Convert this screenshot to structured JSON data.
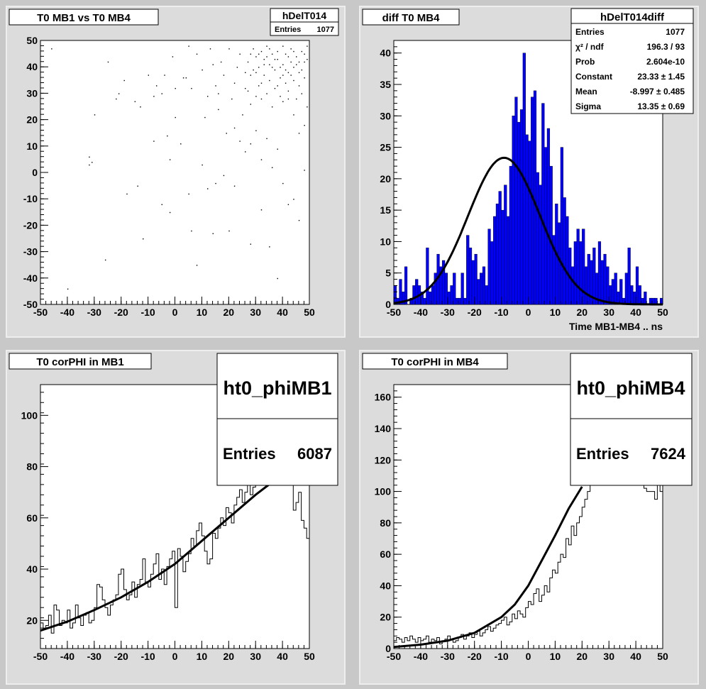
{
  "chart_data": [
    {
      "type": "scatter",
      "title": "T0 MB1 vs T0 MB4",
      "stats": {
        "name": "hDelT014",
        "rows": [
          {
            "label": "Entries",
            "value": "1077"
          }
        ]
      },
      "xlim": [
        -50,
        50
      ],
      "ylim": [
        -50,
        50
      ],
      "xticks": [
        "-50",
        "-40",
        "-30",
        "-20",
        "-10",
        "0",
        "10",
        "20",
        "30",
        "40",
        "50"
      ],
      "yticks": [
        "-50",
        "-40",
        "-30",
        "-20",
        "-10",
        "0",
        "10",
        "20",
        "30",
        "40",
        "50"
      ],
      "xlabel": "",
      "ylabel": "",
      "points": [
        [
          -46,
          47
        ],
        [
          -30,
          22
        ],
        [
          -32,
          6
        ],
        [
          -32,
          3
        ],
        [
          -31,
          4
        ],
        [
          -25,
          42
        ],
        [
          -22,
          28
        ],
        [
          -21,
          30
        ],
        [
          -19,
          35
        ],
        [
          -15,
          27
        ],
        [
          -13,
          25
        ],
        [
          -10,
          37
        ],
        [
          -8,
          29
        ],
        [
          -7,
          33
        ],
        [
          -5,
          30
        ],
        [
          -3,
          14
        ],
        [
          -2,
          5
        ],
        [
          -1,
          44
        ],
        [
          0,
          21
        ],
        [
          2,
          11
        ],
        [
          3,
          36
        ],
        [
          5,
          48
        ],
        [
          6,
          32
        ],
        [
          8,
          45
        ],
        [
          10,
          39
        ],
        [
          11,
          21
        ],
        [
          12,
          29
        ],
        [
          13,
          47
        ],
        [
          14,
          41
        ],
        [
          15,
          33
        ],
        [
          16,
          24
        ],
        [
          17,
          42
        ],
        [
          18,
          37
        ],
        [
          19,
          15
        ],
        [
          20,
          47
        ],
        [
          21,
          28
        ],
        [
          22,
          34
        ],
        [
          23,
          40
        ],
        [
          24,
          45
        ],
        [
          25,
          22
        ],
        [
          26,
          32
        ],
        [
          27,
          42
        ],
        [
          28,
          37
        ],
        [
          28,
          26
        ],
        [
          29,
          47
        ],
        [
          30,
          44
        ],
        [
          31,
          33
        ],
        [
          31,
          40
        ],
        [
          32,
          46
        ],
        [
          32,
          28
        ],
        [
          33,
          37
        ],
        [
          33,
          43
        ],
        [
          34,
          30
        ],
        [
          34,
          48
        ],
        [
          35,
          41
        ],
        [
          35,
          35
        ],
        [
          36,
          45
        ],
        [
          36,
          25
        ],
        [
          37,
          39
        ],
        [
          37,
          32
        ],
        [
          38,
          46
        ],
        [
          38,
          43
        ],
        [
          39,
          36
        ],
        [
          39,
          29
        ],
        [
          40,
          48
        ],
        [
          40,
          41
        ],
        [
          41,
          34
        ],
        [
          41,
          45
        ],
        [
          42,
          38
        ],
        [
          42,
          31
        ],
        [
          43,
          47
        ],
        [
          43,
          42
        ],
        [
          44,
          35
        ],
        [
          44,
          40
        ],
        [
          45,
          28
        ],
        [
          45,
          44
        ],
        [
          46,
          38
        ],
        [
          46,
          33
        ],
        [
          47,
          46
        ],
        [
          47,
          30
        ],
        [
          48,
          42
        ],
        [
          48,
          36
        ],
        [
          49,
          48
        ],
        [
          49,
          25
        ],
        [
          30,
          38
        ],
        [
          32,
          34
        ],
        [
          34,
          44
        ],
        [
          36,
          40
        ],
        [
          38,
          33
        ],
        [
          40,
          37
        ],
        [
          42,
          44
        ],
        [
          44,
          46
        ],
        [
          46,
          42
        ],
        [
          48,
          45
        ],
        [
          27,
          31
        ],
        [
          29,
          39
        ],
        [
          31,
          45
        ],
        [
          33,
          41
        ],
        [
          35,
          47
        ],
        [
          37,
          43
        ],
        [
          39,
          40
        ],
        [
          41,
          39
        ],
        [
          43,
          37
        ],
        [
          45,
          41
        ],
        [
          47,
          39
        ],
        [
          49,
          43
        ],
        [
          26,
          38
        ],
        [
          28,
          45
        ],
        [
          30,
          29
        ],
        [
          22,
          17
        ],
        [
          24,
          12
        ],
        [
          26,
          8
        ],
        [
          28,
          11
        ],
        [
          30,
          16
        ],
        [
          32,
          5
        ],
        [
          34,
          13
        ],
        [
          36,
          2
        ],
        [
          38,
          9
        ],
        [
          40,
          -4
        ],
        [
          42,
          -12
        ],
        [
          44,
          -10
        ],
        [
          46,
          -18
        ],
        [
          48,
          1
        ],
        [
          18,
          -1
        ],
        [
          15,
          -4
        ],
        [
          12,
          -6
        ],
        [
          5,
          -8
        ],
        [
          -5,
          -12
        ],
        [
          -2,
          -15
        ],
        [
          6,
          -22
        ],
        [
          14,
          -23
        ],
        [
          20,
          -22
        ],
        [
          28,
          -27
        ],
        [
          35,
          -28
        ],
        [
          38,
          -40
        ],
        [
          -12,
          -25
        ],
        [
          -18,
          -8
        ],
        [
          -26,
          -33
        ],
        [
          -40,
          -44
        ],
        [
          8,
          -35
        ],
        [
          22,
          -5
        ],
        [
          10,
          3
        ],
        [
          -8,
          12
        ],
        [
          -14,
          -5
        ],
        [
          32,
          -14
        ],
        [
          44,
          22
        ],
        [
          46,
          15
        ],
        [
          48,
          18
        ],
        [
          42,
          28
        ],
        [
          40,
          27
        ],
        [
          16,
          30
        ],
        [
          4,
          36
        ],
        [
          -4,
          37
        ],
        [
          0,
          32
        ]
      ]
    },
    {
      "type": "bar",
      "title": "diff T0 MB4",
      "xlabel": "Time MB1-MB4  ..  ns",
      "ylabel": "",
      "xlim": [
        -50,
        50
      ],
      "ylim": [
        0,
        42
      ],
      "xticks": [
        "-50",
        "-40",
        "-30",
        "-20",
        "-10",
        "0",
        "10",
        "20",
        "30",
        "40",
        "50"
      ],
      "yticks": [
        "0",
        "5",
        "10",
        "15",
        "20",
        "25",
        "30",
        "35",
        "40"
      ],
      "bin_start": -50,
      "bin_width": 1,
      "values": [
        3,
        1,
        4,
        2,
        6,
        0,
        1,
        3,
        4,
        3,
        2,
        1,
        9,
        2,
        3,
        5,
        8,
        6,
        7,
        5,
        2,
        3,
        5,
        1,
        1,
        5,
        1,
        11,
        9,
        7,
        8,
        4,
        5,
        6,
        3,
        12,
        10,
        14,
        16,
        18,
        15,
        19,
        14,
        22,
        30,
        33,
        29,
        31,
        40,
        27,
        26,
        33,
        34,
        21,
        19,
        32,
        25,
        28,
        22,
        11,
        16,
        13,
        25,
        17,
        14,
        9,
        6,
        10,
        12,
        10,
        12,
        6,
        8,
        7,
        9,
        5,
        10,
        7,
        8,
        6,
        3,
        4,
        5,
        2,
        4,
        1,
        5,
        9,
        3,
        2,
        6,
        3,
        1,
        2,
        0,
        1,
        1,
        1,
        0,
        1
      ],
      "fit": {
        "type": "gaus",
        "constant": 23.33,
        "mean": -8.997,
        "sigma": 13.35
      },
      "stats": {
        "name": "hDelT014diff",
        "rows": [
          {
            "label": "Entries",
            "value": "1077"
          },
          {
            "label": "χ² / ndf",
            "value": "196.3 / 93"
          },
          {
            "label": "Prob",
            "value": "2.604e-10"
          },
          {
            "label": "Constant",
            "value": "23.33 ± 1.45"
          },
          {
            "label": "Mean",
            "value": "-8.997 ± 0.485"
          },
          {
            "label": "Sigma",
            "value": "13.35 ± 0.69"
          }
        ]
      },
      "colors": {
        "fill": "#0000ff"
      }
    },
    {
      "type": "line",
      "title": "T0 corPHI in MB1",
      "xlabel": "",
      "ylabel": "",
      "xlim": [
        -50,
        50
      ],
      "ylim": [
        9,
        112
      ],
      "xticks": [
        "-50",
        "-40",
        "-30",
        "-20",
        "-10",
        "0",
        "10",
        "20",
        "30",
        "40",
        "50"
      ],
      "yticks": [
        "20",
        "40",
        "60",
        "80",
        "100"
      ],
      "bin_start": -50,
      "bin_width": 1,
      "values": [
        19,
        17,
        18,
        22,
        15,
        26,
        24,
        18,
        20,
        19,
        24,
        17,
        19,
        26,
        21,
        18,
        22,
        23,
        19,
        20,
        25,
        34,
        33,
        28,
        25,
        22,
        26,
        28,
        30,
        38,
        40,
        32,
        28,
        30,
        35,
        29,
        34,
        36,
        44,
        35,
        33,
        38,
        42,
        46,
        36,
        40,
        34,
        41,
        44,
        47,
        25,
        48,
        45,
        39,
        43,
        46,
        52,
        49,
        55,
        58,
        53,
        47,
        42,
        44,
        54,
        52,
        56,
        60,
        57,
        64,
        62,
        58,
        65,
        68,
        71,
        66,
        70,
        73,
        69,
        72,
        75,
        78,
        76,
        80,
        74,
        79,
        82,
        77,
        84,
        80,
        83,
        86,
        81,
        85,
        63,
        66,
        70,
        59,
        56,
        52
      ],
      "fit_points": [
        [
          -50,
          16
        ],
        [
          -40,
          19.5
        ],
        [
          -30,
          24
        ],
        [
          -20,
          29
        ],
        [
          -10,
          35
        ],
        [
          0,
          42
        ],
        [
          10,
          51
        ],
        [
          20,
          60
        ],
        [
          30,
          69
        ],
        [
          40,
          77
        ],
        [
          42,
          80
        ]
      ],
      "stats": {
        "name": "ht0_phiMB1",
        "rows": [
          {
            "label": "Entries",
            "value": "6087"
          }
        ]
      }
    },
    {
      "type": "line",
      "title": "T0 corPHI in MB4",
      "xlabel": "",
      "ylabel": "",
      "xlim": [
        -50,
        50
      ],
      "ylim": [
        0,
        168
      ],
      "xticks": [
        "-50",
        "-40",
        "-30",
        "-20",
        "-10",
        "0",
        "10",
        "20",
        "30",
        "40",
        "50"
      ],
      "yticks": [
        "0",
        "20",
        "40",
        "60",
        "80",
        "100",
        "120",
        "140",
        "160"
      ],
      "bin_start": -50,
      "bin_width": 1,
      "values": [
        5,
        7,
        6,
        4,
        7,
        5,
        8,
        6,
        4,
        7,
        5,
        6,
        8,
        4,
        6,
        5,
        7,
        3,
        5,
        6,
        8,
        6,
        4,
        5,
        7,
        9,
        6,
        8,
        10,
        7,
        9,
        11,
        8,
        10,
        12,
        14,
        11,
        13,
        15,
        16,
        18,
        20,
        15,
        17,
        22,
        19,
        24,
        22,
        20,
        26,
        30,
        28,
        35,
        38,
        30,
        34,
        40,
        36,
        45,
        50,
        48,
        55,
        60,
        58,
        70,
        66,
        78,
        72,
        80,
        84,
        90,
        95,
        100,
        105,
        110,
        115,
        120,
        125,
        125,
        128,
        130,
        128,
        126,
        124,
        120,
        118,
        116,
        114,
        112,
        110,
        108,
        106,
        104,
        102,
        100,
        100,
        100,
        95,
        105,
        100
      ],
      "fit_points": [
        [
          -50,
          1
        ],
        [
          -40,
          2.5
        ],
        [
          -30,
          5
        ],
        [
          -20,
          10
        ],
        [
          -10,
          20
        ],
        [
          -5,
          28
        ],
        [
          0,
          40
        ],
        [
          5,
          56
        ],
        [
          10,
          72
        ],
        [
          15,
          89
        ],
        [
          20,
          103
        ]
      ],
      "stats": {
        "name": "ht0_phiMB4",
        "rows": [
          {
            "label": "Entries",
            "value": "7624"
          }
        ]
      }
    }
  ]
}
